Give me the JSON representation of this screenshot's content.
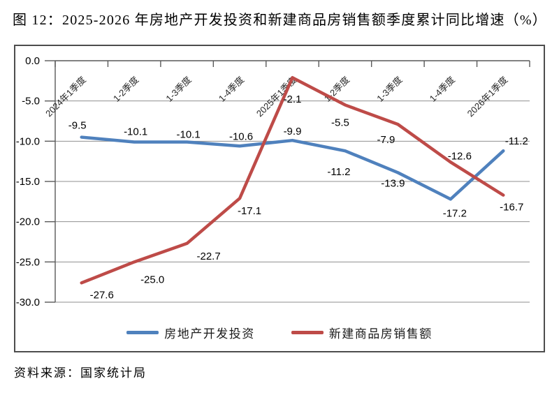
{
  "title": "图 12：2025-2026 年房地产开发投资和新建商品房销售额季度累计同比增速（%）",
  "source": "资料来源：国家统计局",
  "chart_data": {
    "type": "line",
    "title": "2025-2026 年房地产开发投资和新建商品房销售额季度累计同比增速（%）",
    "categories": [
      "2024年1季度",
      "1-2季度",
      "1-3季度",
      "1-4季度",
      "2025年1季度",
      "1-2季度",
      "1-3季度",
      "1-4季度",
      "2026年1季度"
    ],
    "series": [
      {
        "name": "房地产开发投资",
        "color": "#4F81BD",
        "values": [
          -9.5,
          -10.1,
          -10.1,
          -10.6,
          -9.9,
          -11.2,
          -13.9,
          -17.2,
          -11.2
        ],
        "label_offsets": [
          [
            -6,
            -12
          ],
          [
            2,
            -10
          ],
          [
            2,
            -6
          ],
          [
            2,
            -9
          ],
          [
            0,
            -8
          ],
          [
            -9,
            35
          ],
          [
            -7,
            20
          ],
          [
            6,
            25
          ],
          [
            19,
            -9
          ]
        ]
      },
      {
        "name": "新建商品房销售额",
        "color": "#BE4B48",
        "values": [
          -27.6,
          -25.0,
          -22.7,
          -17.1,
          -2.1,
          -5.5,
          -7.9,
          -12.6,
          -16.7
        ],
        "label_offsets": [
          [
            29,
            22
          ],
          [
            26,
            30
          ],
          [
            31,
            23
          ],
          [
            14,
            23
          ],
          [
            0,
            36
          ],
          [
            -7,
            30
          ],
          [
            -17,
            27
          ],
          [
            13,
            -4
          ],
          [
            12,
            22
          ]
        ]
      }
    ],
    "xlabel": "",
    "ylabel": "",
    "ylim": [
      -30,
      0
    ],
    "ytick_step": 5,
    "ytick_labels": [
      "0.0",
      "-5.0",
      "-10.0",
      "-15.0",
      "-20.0",
      "-25.0",
      "-30.0"
    ],
    "grid": true,
    "legend_position": "bottom",
    "axis_color": "#595959",
    "grid_color": "#8f8f8f"
  }
}
